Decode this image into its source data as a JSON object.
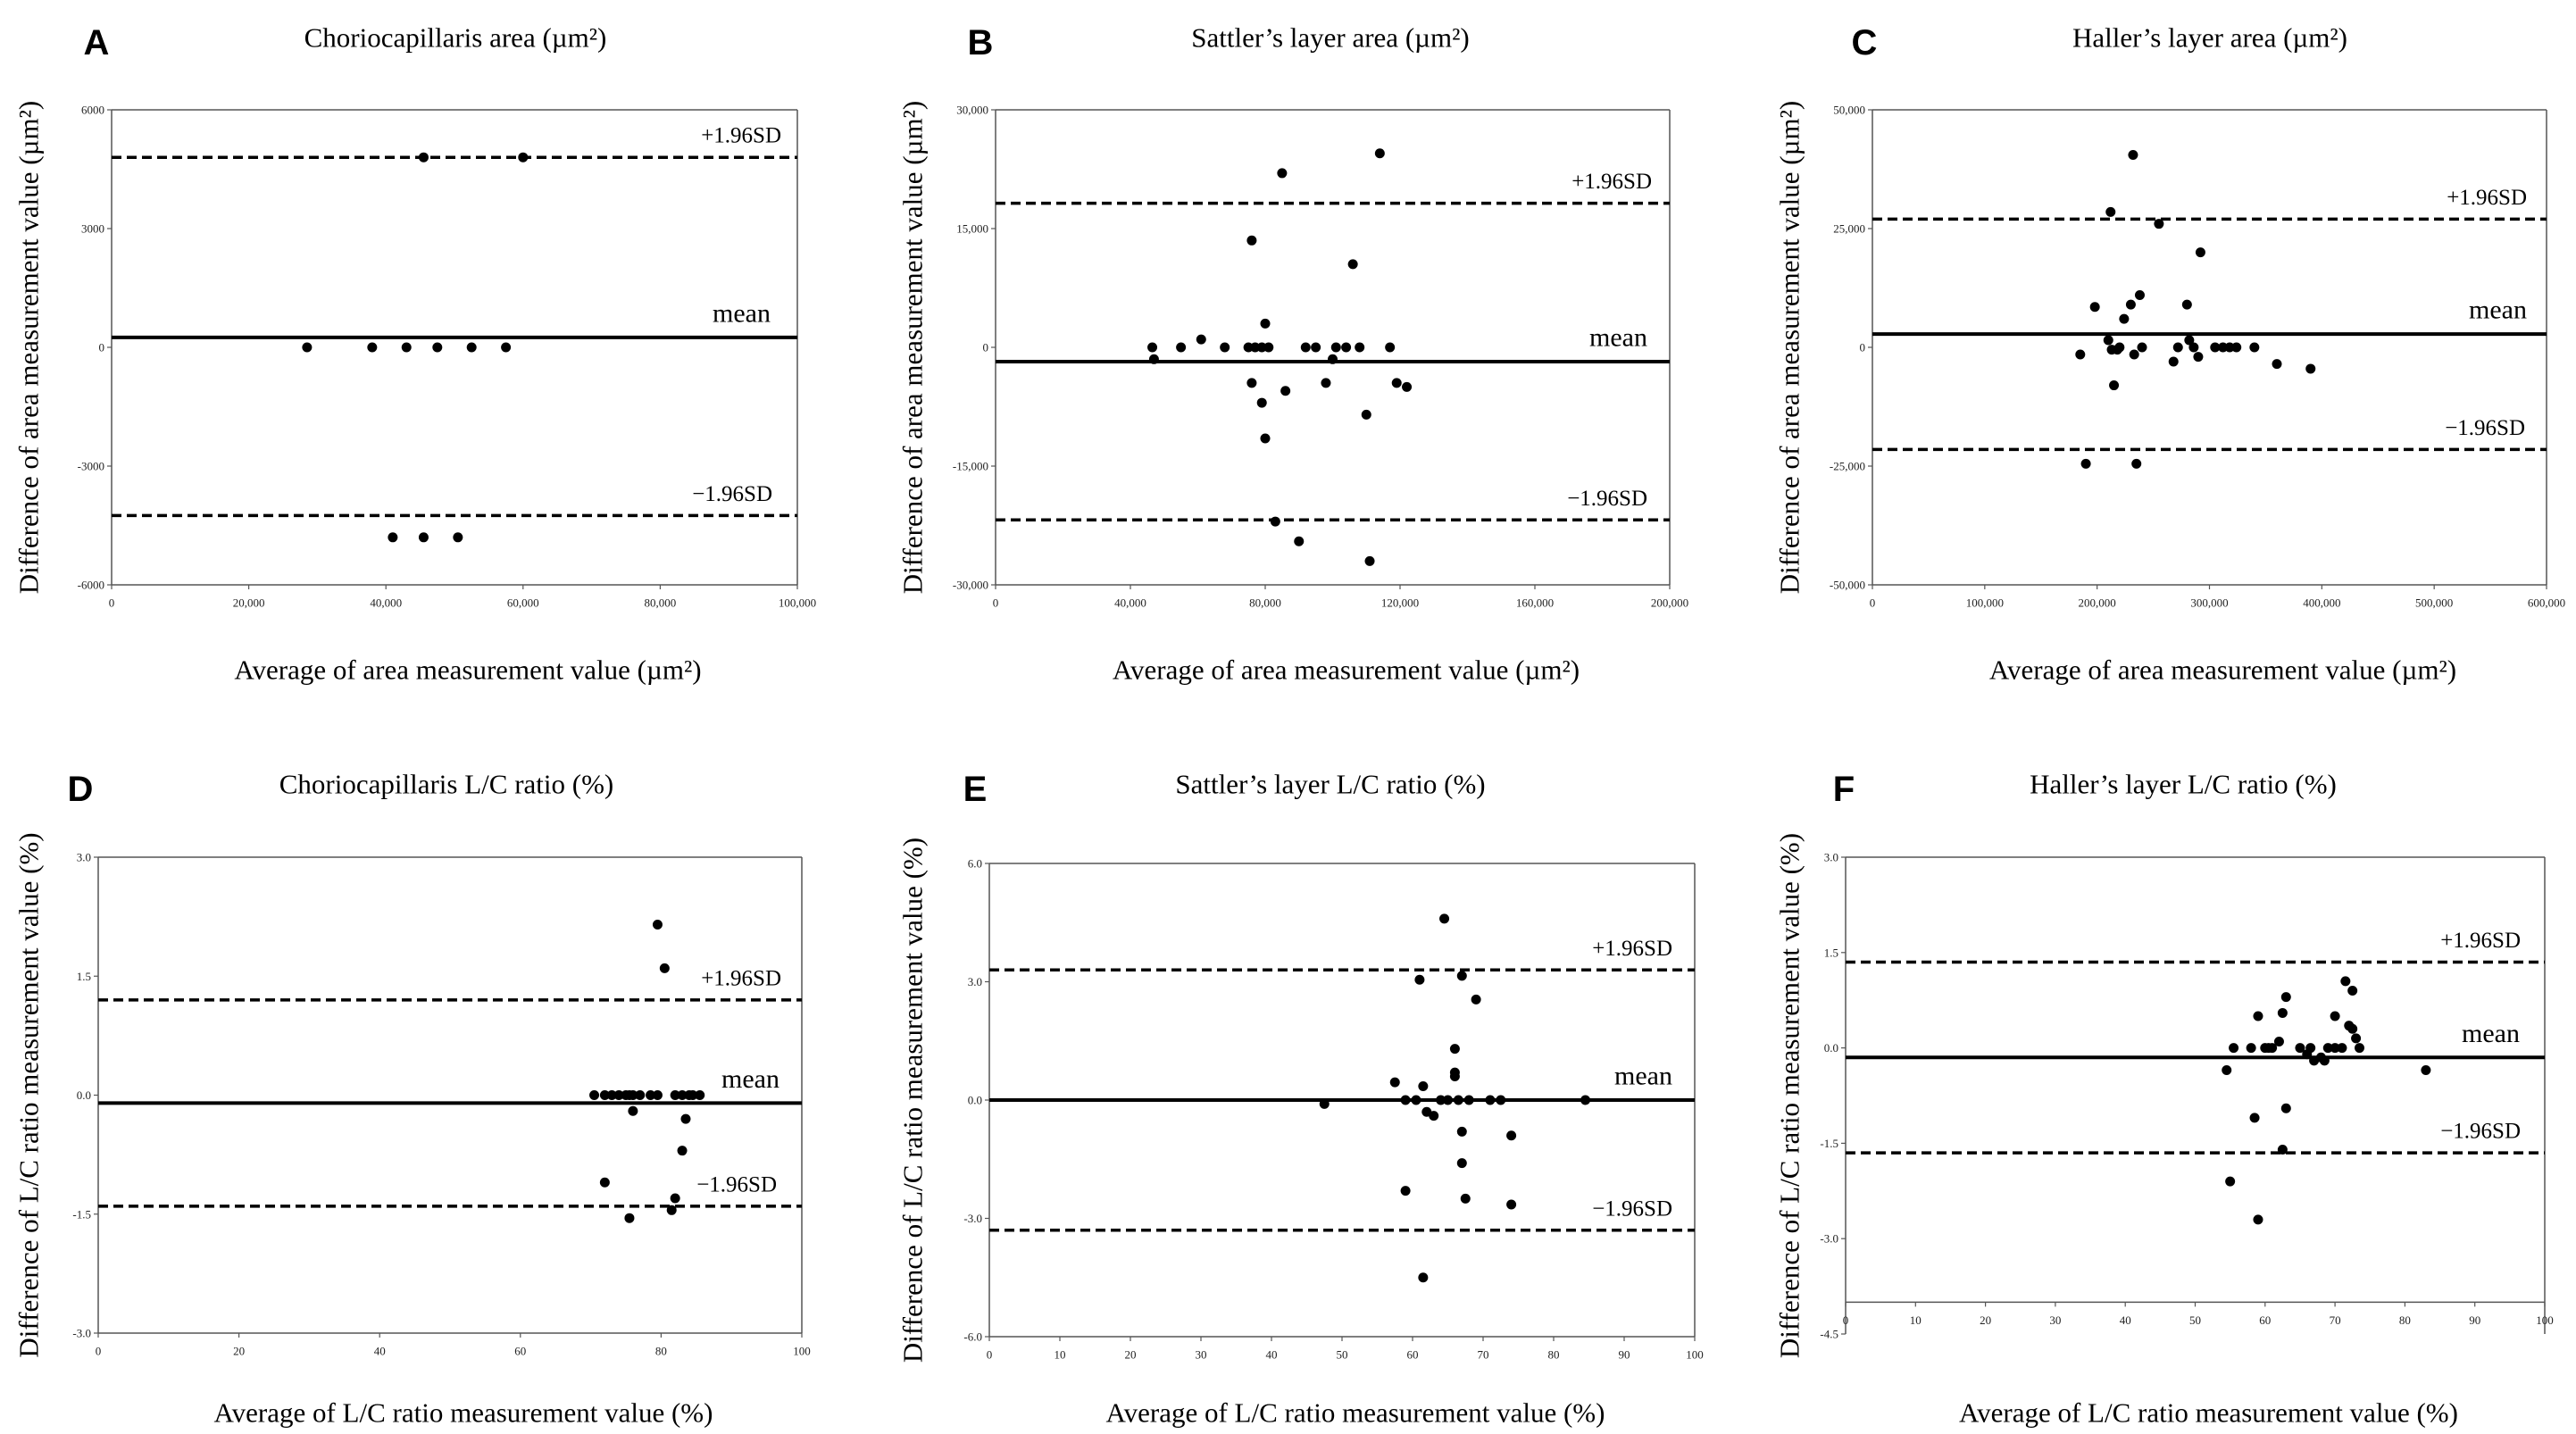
{
  "chart_data": [
    {
      "type": "scatter",
      "panel": "A",
      "title": "Choriocapillaris  area (µm²)",
      "xlabel": "Average of area measurement value (µm²)",
      "ylabel": "Difference of area measurement value (µm²)",
      "xlim": [
        0,
        100000
      ],
      "ylim": [
        -6000,
        6000
      ],
      "xticks": [
        0,
        20000,
        40000,
        60000,
        80000,
        100000
      ],
      "xtick_labels": [
        "0",
        "20,000",
        "40,000",
        "60,000",
        "80,000",
        "100,000"
      ],
      "yticks": [
        -6000,
        -3000,
        0,
        3000,
        6000
      ],
      "ytick_labels": [
        "-6000",
        "-3000",
        "0",
        "3000",
        "6000"
      ],
      "mean": 250,
      "upper_loa": 4800,
      "lower_loa": -4250,
      "upper_label": "+1.96SD",
      "lower_label": "−1.96SD",
      "mean_label": "mean",
      "points": [
        [
          28500,
          0
        ],
        [
          38000,
          0
        ],
        [
          43000,
          0
        ],
        [
          47500,
          0
        ],
        [
          52500,
          0
        ],
        [
          57500,
          0
        ],
        [
          45500,
          4800
        ],
        [
          60000,
          4800
        ],
        [
          41000,
          -4800
        ],
        [
          45500,
          -4800
        ],
        [
          50500,
          -4800
        ]
      ]
    },
    {
      "type": "scatter",
      "panel": "B",
      "title": "Sattler’s layer area (µm²)",
      "xlabel": "Average of area measurement value (µm²)",
      "ylabel": "Difference of area measurement value (µm²)",
      "xlim": [
        0,
        200000
      ],
      "ylim": [
        -30000,
        30000
      ],
      "xticks": [
        0,
        40000,
        80000,
        120000,
        160000,
        200000
      ],
      "xtick_labels": [
        "0",
        "40,000",
        "80,000",
        "120,000",
        "160,000",
        "200,000"
      ],
      "yticks": [
        -30000,
        -15000,
        0,
        15000,
        30000
      ],
      "ytick_labels": [
        "-30,000",
        "-15,000",
        "0",
        "15,000",
        "30,000"
      ],
      "mean": -1800,
      "upper_loa": 18200,
      "lower_loa": -21800,
      "upper_label": "+1.96SD",
      "lower_label": "−1.96SD",
      "mean_label": "mean",
      "points": [
        [
          46500,
          0
        ],
        [
          47000,
          -1500
        ],
        [
          55000,
          0
        ],
        [
          61000,
          1000
        ],
        [
          68000,
          0
        ],
        [
          75000,
          0
        ],
        [
          77000,
          0
        ],
        [
          79000,
          0
        ],
        [
          81000,
          0
        ],
        [
          80000,
          3000
        ],
        [
          76000,
          -4500
        ],
        [
          79000,
          -7000
        ],
        [
          80000,
          -11500
        ],
        [
          76000,
          13500
        ],
        [
          85000,
          22000
        ],
        [
          86000,
          -5500
        ],
        [
          90000,
          -24500
        ],
        [
          92000,
          0
        ],
        [
          95000,
          0
        ],
        [
          98000,
          -4500
        ],
        [
          100000,
          -1500
        ],
        [
          101000,
          0
        ],
        [
          104000,
          0
        ],
        [
          106000,
          10500
        ],
        [
          108000,
          0
        ],
        [
          110000,
          -8500
        ],
        [
          111000,
          -27000
        ],
        [
          114000,
          24500
        ],
        [
          117000,
          0
        ],
        [
          119000,
          -4500
        ],
        [
          122000,
          -5000
        ],
        [
          83000,
          -22000
        ]
      ]
    },
    {
      "type": "scatter",
      "panel": "C",
      "title": "Haller’s layer area (µm²)",
      "xlabel": "Average of area measurement value (µm²)",
      "ylabel": "Difference of area measurement value (µm²)",
      "xlim": [
        0,
        600000
      ],
      "ylim": [
        -50000,
        50000
      ],
      "xticks": [
        0,
        100000,
        200000,
        300000,
        400000,
        500000,
        600000
      ],
      "xtick_labels": [
        "0",
        "100,000",
        "200,000",
        "300,000",
        "400,000",
        "500,000",
        "600,000"
      ],
      "yticks": [
        -50000,
        -25000,
        0,
        25000,
        50000
      ],
      "ytick_labels": [
        "-50,000",
        "-25,000",
        "0",
        "25,000",
        "50,000"
      ],
      "mean": 2800,
      "upper_loa": 27000,
      "lower_loa": -21500,
      "upper_label": "+1.96SD",
      "lower_label": "−1.96SD",
      "mean_label": "mean",
      "points": [
        [
          185000,
          -1500
        ],
        [
          190000,
          -24500
        ],
        [
          198000,
          8500
        ],
        [
          210000,
          1500
        ],
        [
          212000,
          28500
        ],
        [
          213000,
          -500
        ],
        [
          215000,
          -8000
        ],
        [
          218000,
          -500
        ],
        [
          220000,
          0
        ],
        [
          224000,
          6000
        ],
        [
          230000,
          9000
        ],
        [
          232000,
          40500
        ],
        [
          233000,
          -1500
        ],
        [
          235000,
          -24500
        ],
        [
          238000,
          11000
        ],
        [
          240000,
          0
        ],
        [
          255000,
          26000
        ],
        [
          268000,
          -3000
        ],
        [
          272000,
          0
        ],
        [
          280000,
          9000
        ],
        [
          282000,
          1500
        ],
        [
          286000,
          0
        ],
        [
          290000,
          -2000
        ],
        [
          292000,
          20000
        ],
        [
          305000,
          0
        ],
        [
          312000,
          0
        ],
        [
          318000,
          0
        ],
        [
          324000,
          0
        ],
        [
          340000,
          0
        ],
        [
          360000,
          -3500
        ],
        [
          390000,
          -4500
        ]
      ]
    },
    {
      "type": "scatter",
      "panel": "D",
      "title": "Choriocapillaris L/C ratio (%)",
      "xlabel": "Average of L/C ratio measurement value (%)",
      "ylabel": "Difference of L/C ratio measurement value (%)",
      "xlim": [
        0,
        100
      ],
      "ylim": [
        -3.0,
        3.0
      ],
      "xticks": [
        0,
        20,
        40,
        60,
        80,
        100
      ],
      "xtick_labels": [
        "0",
        "20",
        "40",
        "60",
        "80",
        "100"
      ],
      "yticks": [
        -3.0,
        -1.5,
        0.0,
        1.5,
        3.0
      ],
      "ytick_labels": [
        "-3.0",
        "-1.5",
        "0.0",
        "1.5",
        "3.0"
      ],
      "mean": -0.1,
      "upper_loa": 1.2,
      "lower_loa": -1.4,
      "upper_label": "+1.96SD",
      "lower_label": "−1.96SD",
      "mean_label": "mean",
      "points": [
        [
          70.5,
          0
        ],
        [
          72,
          0
        ],
        [
          73,
          0
        ],
        [
          74,
          0
        ],
        [
          75,
          0
        ],
        [
          75.5,
          0
        ],
        [
          76,
          0
        ],
        [
          77,
          0
        ],
        [
          78.5,
          0
        ],
        [
          79.5,
          0
        ],
        [
          82,
          0
        ],
        [
          83,
          0
        ],
        [
          84,
          0
        ],
        [
          84.5,
          0
        ],
        [
          85.5,
          0
        ],
        [
          76,
          -0.2
        ],
        [
          83.5,
          -0.3
        ],
        [
          83,
          -0.7
        ],
        [
          79.5,
          2.15
        ],
        [
          80.5,
          1.6
        ],
        [
          72,
          -1.1
        ],
        [
          75.5,
          -1.55
        ],
        [
          82,
          -1.3
        ],
        [
          81.5,
          -1.45
        ]
      ]
    },
    {
      "type": "scatter",
      "panel": "E",
      "title": "Sattler’s layer L/C ratio (%)",
      "xlabel": "Average of L/C ratio measurement value (%)",
      "ylabel": "Difference of L/C ratio measurement value (%)",
      "xlim": [
        0,
        100
      ],
      "ylim": [
        -6.0,
        6.0
      ],
      "xticks": [
        0,
        10,
        20,
        30,
        40,
        50,
        60,
        70,
        80,
        90,
        100
      ],
      "xtick_labels": [
        "0",
        "10",
        "20",
        "30",
        "40",
        "50",
        "60",
        "70",
        "80",
        "90",
        "100"
      ],
      "yticks": [
        -6.0,
        -3.0,
        0.0,
        3.0,
        6.0
      ],
      "ytick_labels": [
        "-6.0",
        "-3.0",
        "0.0",
        "3.0",
        "6.0"
      ],
      "mean": 0.0,
      "upper_loa": 3.3,
      "lower_loa": -3.3,
      "upper_label": "+1.96SD",
      "lower_label": "−1.96SD",
      "mean_label": "mean",
      "points": [
        [
          47.5,
          -0.1
        ],
        [
          57.5,
          0.45
        ],
        [
          59,
          0
        ],
        [
          60.5,
          0
        ],
        [
          61,
          3.05
        ],
        [
          61.5,
          0.35
        ],
        [
          62,
          -0.3
        ],
        [
          63,
          -0.4
        ],
        [
          64,
          0
        ],
        [
          64.5,
          4.6
        ],
        [
          65,
          0
        ],
        [
          66,
          0.7
        ],
        [
          66,
          1.3
        ],
        [
          66.5,
          0
        ],
        [
          67,
          3.15
        ],
        [
          67,
          -0.8
        ],
        [
          67,
          -1.6
        ],
        [
          67.5,
          -2.5
        ],
        [
          68,
          0
        ],
        [
          69,
          2.55
        ],
        [
          71,
          0
        ],
        [
          72.5,
          0
        ],
        [
          74,
          -0.9
        ],
        [
          74,
          -2.65
        ],
        [
          59,
          -2.3
        ],
        [
          61.5,
          -4.5
        ],
        [
          66,
          0.6
        ],
        [
          84.5,
          0
        ]
      ]
    },
    {
      "type": "scatter",
      "panel": "F",
      "title": "Haller’s layer L/C ratio (%)",
      "xlabel": "Average of L/C ratio measurement value (%)",
      "ylabel": "Difference of L/C ratio measurement value (%)",
      "xlim": [
        0,
        100
      ],
      "ylim": [
        -4.5,
        3.0
      ],
      "xticks": [
        0,
        10,
        20,
        30,
        40,
        50,
        60,
        70,
        80,
        90,
        100
      ],
      "xtick_labels": [
        "0",
        "10",
        "20",
        "30",
        "40",
        "50",
        "60",
        "70",
        "80",
        "90",
        "100"
      ],
      "yticks": [
        -4.5,
        -3.0,
        -1.5,
        0.0,
        1.5,
        3.0
      ],
      "ytick_labels": [
        "-4.5",
        "-3.0",
        "-1.5",
        "0.0",
        "1.5",
        "3.0"
      ],
      "axis_at": -4.0,
      "mean": -0.15,
      "upper_loa": 1.35,
      "lower_loa": -1.65,
      "upper_label": "+1.96SD",
      "lower_label": "−1.96SD",
      "mean_label": "mean",
      "points": [
        [
          54.5,
          -0.35
        ],
        [
          55.5,
          0
        ],
        [
          58,
          0
        ],
        [
          59,
          0.5
        ],
        [
          60,
          0
        ],
        [
          60.5,
          0
        ],
        [
          61,
          0
        ],
        [
          62,
          0.1
        ],
        [
          62.5,
          0.55
        ],
        [
          63,
          0.8
        ],
        [
          63,
          -0.95
        ],
        [
          62.5,
          -1.6
        ],
        [
          65,
          0
        ],
        [
          66,
          -0.1
        ],
        [
          66.5,
          0
        ],
        [
          67,
          -0.2
        ],
        [
          68,
          -0.15
        ],
        [
          68.5,
          -0.2
        ],
        [
          69,
          0
        ],
        [
          70,
          0.5
        ],
        [
          70,
          0
        ],
        [
          71,
          0
        ],
        [
          71.5,
          1.05
        ],
        [
          72,
          0.35
        ],
        [
          72.5,
          0.9
        ],
        [
          72.5,
          0.3
        ],
        [
          73,
          0.15
        ],
        [
          73.5,
          0
        ],
        [
          58.5,
          -1.1
        ],
        [
          55,
          -2.1
        ],
        [
          59,
          -2.7
        ],
        [
          83,
          -0.35
        ]
      ]
    }
  ]
}
